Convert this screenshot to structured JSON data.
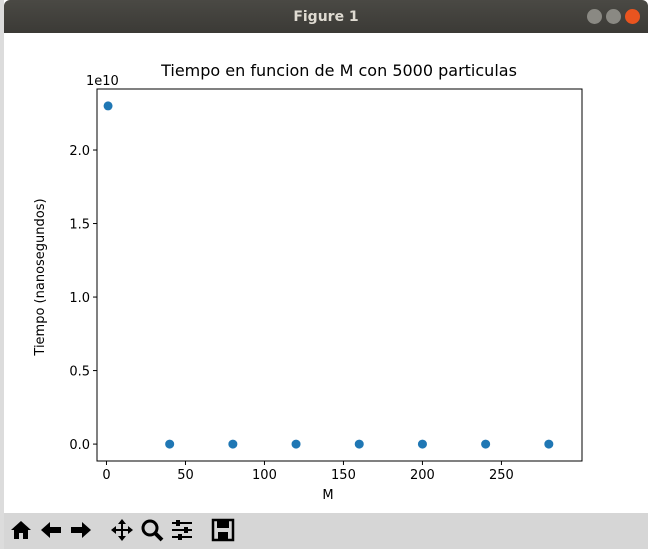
{
  "window": {
    "title": "Figure 1"
  },
  "chart_data": {
    "type": "scatter",
    "title": "Tiempo en funcion de M con 5000 particulas",
    "x_label": "M",
    "y_label": "Tiempo (nanosegundos)",
    "y_offset_label": "1e10",
    "color": "#1f77b4",
    "x": [
      1,
      40,
      80,
      120,
      160,
      200,
      240,
      280
    ],
    "values": [
      2.3,
      0,
      0,
      0,
      0,
      0,
      0,
      0
    ],
    "xlim": [
      -6,
      301
    ],
    "ylim": [
      -0.115,
      2.415
    ],
    "xticks": [
      0,
      50,
      100,
      150,
      200,
      250
    ],
    "yticks": [
      {
        "value": 0,
        "label": "0.0"
      },
      {
        "value": 0.5,
        "label": "0.5"
      },
      {
        "value": 1,
        "label": "1.0"
      },
      {
        "value": 1.5,
        "label": "1.5"
      },
      {
        "value": 2,
        "label": "2.0"
      }
    ]
  }
}
